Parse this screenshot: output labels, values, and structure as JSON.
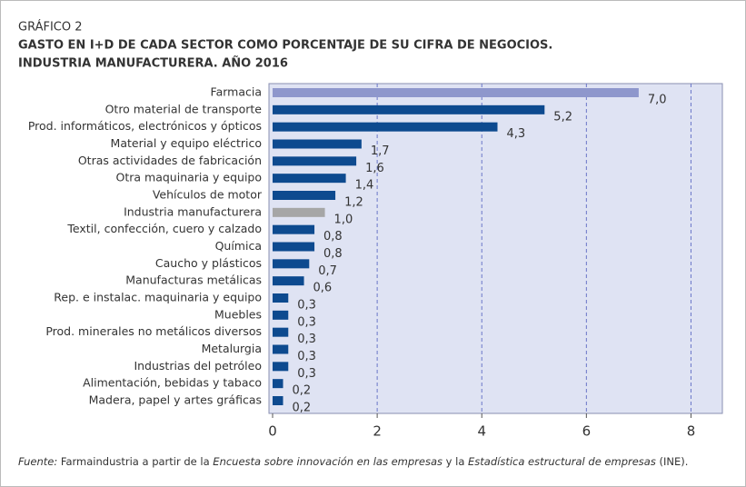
{
  "chart_data": {
    "type": "bar",
    "orientation": "horizontal",
    "label": "GRÁFICO 2",
    "title": [
      "GASTO EN I+D DE CADA SECTOR COMO PORCENTAJE DE SU CIFRA DE NEGOCIOS.",
      "INDUSTRIA MANUFACTURERA. AÑO 2016"
    ],
    "categories": [
      "Farmacia",
      "Otro material de transporte",
      "Prod. informáticos, electrónicos y ópticos",
      "Material y equipo eléctrico",
      "Otras actividades de fabricación",
      "Otra maquinaria y equipo",
      "Vehículos de motor",
      "Industria manufacturera",
      "Textil, confección, cuero y calzado",
      "Química",
      "Caucho y plásticos",
      "Manufacturas metálicas",
      "Rep. e instalac. maquinaria y equipo",
      "Muebles",
      "Prod. minerales no metálicos diversos",
      "Metalurgia",
      "Industrias del petróleo",
      "Alimentación, bebidas y tabaco",
      "Madera, papel y artes gráficas"
    ],
    "values": [
      7.0,
      5.2,
      4.3,
      1.7,
      1.6,
      1.4,
      1.2,
      1.0,
      0.8,
      0.8,
      0.7,
      0.6,
      0.3,
      0.3,
      0.3,
      0.3,
      0.3,
      0.2,
      0.2
    ],
    "value_labels": [
      "7,0",
      "5,2",
      "4,3",
      "1,7",
      "1,6",
      "1,4",
      "1,2",
      "1,0",
      "0,8",
      "0,8",
      "0,7",
      "0,6",
      "0,3",
      "0,3",
      "0,3",
      "0,3",
      "0,3",
      "0,2",
      "0,2"
    ],
    "colors": [
      "#8e97cc",
      "#0d4a8f",
      "#0d4a8f",
      "#0d4a8f",
      "#0d4a8f",
      "#0d4a8f",
      "#0d4a8f",
      "#a6a6a6",
      "#0d4a8f",
      "#0d4a8f",
      "#0d4a8f",
      "#0d4a8f",
      "#0d4a8f",
      "#0d4a8f",
      "#0d4a8f",
      "#0d4a8f",
      "#0d4a8f",
      "#0d4a8f",
      "#0d4a8f"
    ],
    "xlim": [
      0,
      8.6
    ],
    "xticks": [
      0,
      2,
      4,
      6,
      8
    ],
    "grid": true,
    "source": {
      "label": "Fuente:",
      "parts": [
        "Farmaindustria a partir de la ",
        "Encuesta sobre innovación en las empresas",
        " y la ",
        "Estadística estructural de empresas",
        " (INE)."
      ]
    }
  }
}
